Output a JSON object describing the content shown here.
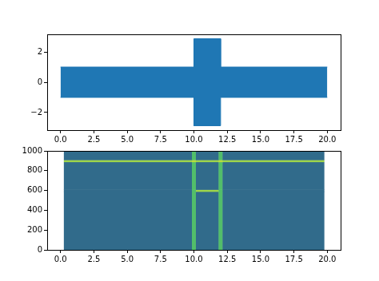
{
  "chart_data": [
    {
      "type": "area",
      "x": [
        0,
        10,
        10,
        12,
        12,
        20
      ],
      "upper": [
        1,
        1,
        2.87,
        2.87,
        1,
        1
      ],
      "lower": [
        -1,
        -1,
        -2.87,
        -2.87,
        -1,
        -1
      ],
      "color": "#1f77b4",
      "xlim": [
        -1,
        21
      ],
      "xticks": [
        {
          "value": 0,
          "label": "0.0"
        },
        2.5,
        {
          "value": 5,
          "label": "5.0"
        },
        7.5,
        {
          "value": 10,
          "label": "10.0"
        },
        12.5,
        {
          "value": 15,
          "label": "15.0"
        },
        17.5,
        {
          "value": 20,
          "label": "20.0"
        }
      ],
      "ylim": [
        -3.16,
        3.16
      ],
      "yticks": [
        {
          "value": -2,
          "label": "−2"
        },
        0,
        2
      ],
      "grid": false
    },
    {
      "type": "heatmap",
      "x_edges": [
        0.25,
        9.85,
        10.15,
        11.85,
        12.15,
        19.75
      ],
      "y_edges": [
        0,
        590,
        610,
        890,
        910,
        1000
      ],
      "cells": [
        [
          0.35,
          0.7,
          0.35,
          0.7,
          0.35
        ],
        [
          0.35,
          0.7,
          0.85,
          0.7,
          0.35
        ],
        [
          0.35,
          0.7,
          0.35,
          0.7,
          0.35
        ],
        [
          0.85,
          0.9,
          0.85,
          0.9,
          0.85
        ],
        [
          0.35,
          0.7,
          0.35,
          0.7,
          0.35
        ]
      ],
      "zlim": [
        0,
        1
      ],
      "xlim": [
        -1,
        21
      ],
      "xticks": [
        {
          "value": 0,
          "label": "0.0"
        },
        2.5,
        {
          "value": 5,
          "label": "5.0"
        },
        7.5,
        {
          "value": 10,
          "label": "10.0"
        },
        12.5,
        {
          "value": 15,
          "label": "15.0"
        },
        17.5,
        {
          "value": 20,
          "label": "20.0"
        }
      ],
      "ylim": [
        0,
        1000
      ],
      "yticks": [
        0,
        200,
        400,
        600,
        800,
        1000
      ],
      "grid": false
    }
  ]
}
